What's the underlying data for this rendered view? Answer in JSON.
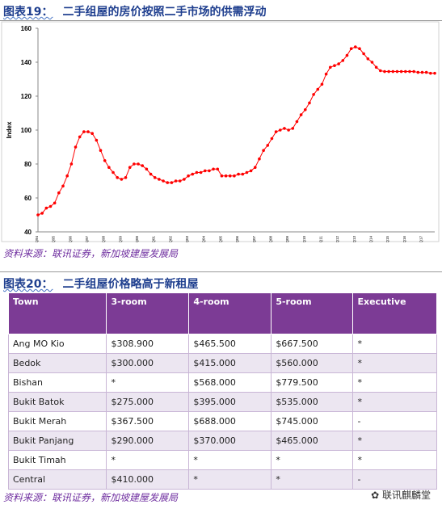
{
  "figure19": {
    "label": "图表19：",
    "caption": "二手组屋的房价按照二手市场的供需浮动",
    "chart_data": {
      "type": "line",
      "ylabel": "Index",
      "color": "#ff0000",
      "grid": false,
      "ylim": [
        40,
        160
      ],
      "yticks": [
        40,
        60,
        80,
        100,
        120,
        140,
        160
      ],
      "categories": [
        "1Q94",
        null,
        null,
        null,
        "1Q95",
        null,
        null,
        null,
        "1Q96",
        null,
        null,
        null,
        "1Q97",
        null,
        null,
        null,
        "1Q98",
        null,
        null,
        null,
        "1Q99",
        null,
        null,
        null,
        "1Q00",
        null,
        null,
        null,
        "1Q01",
        null,
        null,
        null,
        "1Q02",
        null,
        null,
        null,
        "1Q03",
        null,
        null,
        null,
        "1Q04",
        null,
        null,
        null,
        "1Q05",
        null,
        null,
        null,
        "1Q06",
        null,
        null,
        null,
        "1Q07",
        null,
        null,
        null,
        "1Q08",
        null,
        null,
        null,
        "1Q09",
        null,
        null,
        null,
        "1Q10",
        null,
        null,
        null,
        "1Q11",
        null,
        null,
        null,
        "1Q12",
        null,
        null,
        null,
        "1Q13",
        null,
        null,
        null,
        "1Q14",
        null,
        null,
        null,
        "1Q15",
        null,
        null,
        null,
        "1Q16",
        null,
        null,
        null,
        "1Q17",
        null,
        null,
        null
      ],
      "values": [
        50,
        51,
        54,
        55,
        57,
        63,
        67,
        73,
        80,
        90,
        96,
        99,
        99,
        98,
        94,
        88,
        82,
        78,
        75,
        72,
        71,
        72,
        78,
        80,
        80,
        79,
        77,
        74,
        72,
        71,
        70,
        69,
        69,
        70,
        70,
        71,
        73,
        74,
        75,
        75,
        76,
        76,
        77,
        77,
        73,
        73,
        73,
        73,
        74,
        74,
        75,
        76,
        78,
        83,
        88,
        91,
        95,
        99,
        100,
        101,
        100,
        101,
        105,
        109,
        112,
        116,
        121,
        124,
        127,
        133,
        137,
        138,
        139,
        141,
        144,
        148,
        149,
        148,
        145,
        142,
        140,
        137,
        135,
        134.5,
        134.5,
        134.5,
        134.5,
        134.5,
        134.5,
        134.5,
        134.5,
        134,
        134,
        134,
        133.5,
        133.5
      ]
    }
  },
  "source1": "资料来源：联讯证券，新加坡建屋发展局",
  "figure20": {
    "label": "图表20：",
    "caption": "二手组屋价格略高于新租屋",
    "table": {
      "header": [
        "Town",
        "3-room",
        "4-room",
        "5-room",
        "Executive"
      ],
      "rows": [
        [
          "Ang MO Kio",
          "$308.900",
          "$465.500",
          "$667.500",
          "*"
        ],
        [
          "Bedok",
          "$300.000",
          "$415.000",
          "$560.000",
          "*"
        ],
        [
          "Bishan",
          "*",
          "$568.000",
          "$779.500",
          "*"
        ],
        [
          "Bukit Batok",
          "$275.000",
          "$395.000",
          "$535.000",
          "*"
        ],
        [
          "Bukit Merah",
          "$367.500",
          "$688.000",
          "$745.000",
          "-"
        ],
        [
          "Bukit Panjang",
          "$290.000",
          "$370.000",
          "$465.000",
          "*"
        ],
        [
          "Bukit Timah",
          "*",
          "*",
          "*",
          "*"
        ],
        [
          "Central",
          "$410.000",
          "*",
          "*",
          "-"
        ]
      ]
    }
  },
  "source2": "资料来源：联讯证券，新加坡建屋发展局",
  "watermark": "联讯麒麟堂"
}
